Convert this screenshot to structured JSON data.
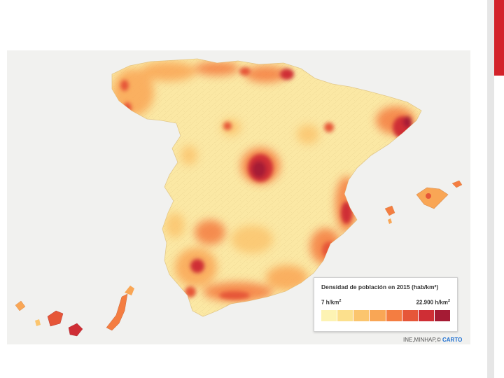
{
  "legend": {
    "title": "Densidad de población en 2015 (hab/km²)",
    "min_label": "7 h/km",
    "max_label": "22.900 h/km",
    "unit_superscript": "2",
    "colors": [
      "#fdf3b3",
      "#fce08d",
      "#fbc56e",
      "#f9a655",
      "#f47d41",
      "#e65638",
      "#cf2e35",
      "#a51b34"
    ]
  },
  "attribution": {
    "source": "INE,MINHAP,©",
    "brand": "CARTO"
  },
  "map": {
    "background": "#f1f1ef",
    "land_base": "#fbe8a4",
    "regions_shown": [
      "Iberian Peninsula (Spain)",
      "Balearic Islands",
      "Canary Islands"
    ]
  }
}
